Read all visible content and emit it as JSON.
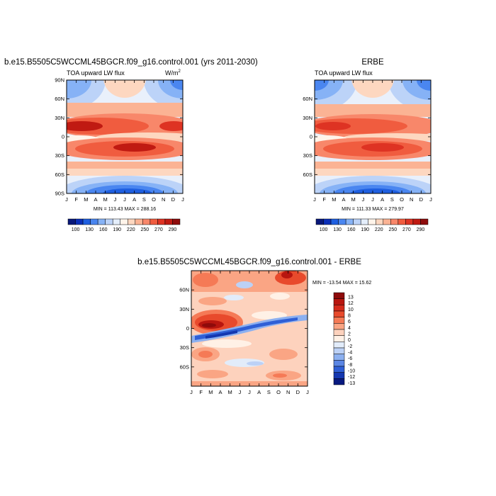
{
  "chart_data": [
    {
      "type": "heatmap",
      "title": "b.e15.B5505C5WCCML45BGCR.f09_g16.control.001 (yrs 2011-2030)",
      "subtitle_left": "TOA upward LW flux",
      "units": "W/m",
      "units_sup": "2",
      "x_ticks": [
        "J",
        "F",
        "M",
        "A",
        "M",
        "J",
        "J",
        "A",
        "S",
        "O",
        "N",
        "D",
        "J"
      ],
      "y_ticks": [
        "90N",
        "60N",
        "30N",
        "0",
        "30S",
        "60S",
        "90S"
      ],
      "y_values": [
        90,
        60,
        30,
        0,
        -30,
        -60,
        -90
      ],
      "minmax": "MIN = 113.43  MAX = 288.16",
      "colorbar_labels": [
        "100",
        "130",
        "160",
        "190",
        "220",
        "250",
        "270",
        "290"
      ]
    },
    {
      "type": "heatmap",
      "title": "ERBE",
      "subtitle_left": "TOA upward LW flux",
      "x_ticks": [
        "J",
        "F",
        "M",
        "A",
        "M",
        "J",
        "J",
        "A",
        "S",
        "O",
        "N",
        "D",
        "J"
      ],
      "y_ticks": [
        "60N",
        "30N",
        "0",
        "30S",
        "60S"
      ],
      "y_values": [
        60,
        30,
        0,
        -30,
        -60
      ],
      "minmax": "MIN = 111.33  MAX = 279.97",
      "colorbar_labels": [
        "100",
        "130",
        "160",
        "190",
        "220",
        "250",
        "270",
        "290"
      ]
    },
    {
      "type": "heatmap",
      "title": "b.e15.B5505C5WCCML45BGCR.f09_g16.control.001 - ERBE",
      "x_ticks": [
        "J",
        "F",
        "M",
        "A",
        "M",
        "J",
        "J",
        "A",
        "S",
        "O",
        "N",
        "D",
        "J"
      ],
      "y_ticks": [
        "60N",
        "30N",
        "0",
        "30S",
        "60S"
      ],
      "y_values": [
        60,
        30,
        0,
        -30,
        -60
      ],
      "minmax": "MIN = -13.54  MAX =  15.62",
      "colorbar_labels": [
        "13",
        "12",
        "10",
        "8",
        "6",
        "4",
        "2",
        "0",
        "-2",
        "-4",
        "-6",
        "-8",
        "-10",
        "-12",
        "-13"
      ]
    }
  ],
  "colors": {
    "flux_scale": [
      "#08187a",
      "#0b2fb8",
      "#1f5fe0",
      "#4a86f0",
      "#86b2f6",
      "#bcd3f8",
      "#e4eefb",
      "#fff4ea",
      "#fdd7c0",
      "#fbb394",
      "#f8876a",
      "#f05c3f",
      "#de3323",
      "#c01a12",
      "#8e0b0b"
    ],
    "diff_scale": [
      "#8e0b0b",
      "#b8160f",
      "#d42a1b",
      "#e84a2c",
      "#f57a56",
      "#faa584",
      "#fdd2bd",
      "#fff1e6",
      "#e2ecfa",
      "#bcd1f6",
      "#8cb0f0",
      "#5b86e4",
      "#2f5fd6",
      "#1437b0",
      "#081a80"
    ]
  }
}
